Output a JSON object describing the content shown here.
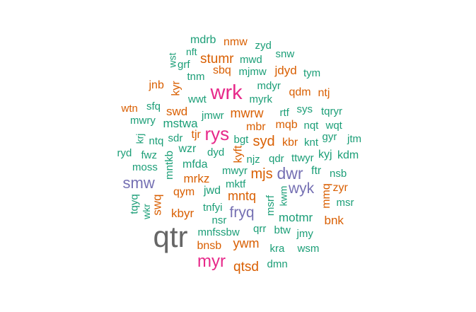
{
  "palette": {
    "teal": "#1b9e77",
    "orange": "#d95f02",
    "purple": "#7570b3",
    "pink": "#e7298a",
    "gray": "#666666"
  },
  "word_cloud": {
    "words": [
      {
        "text": "mdrb",
        "color": "teal"
      },
      {
        "text": "nmw",
        "color": "orange"
      },
      {
        "text": "zyd",
        "color": "teal"
      },
      {
        "text": "nft",
        "color": "teal"
      },
      {
        "text": "snw",
        "color": "teal"
      },
      {
        "text": "wst",
        "color": "teal"
      },
      {
        "text": "grf",
        "color": "teal"
      },
      {
        "text": "stumr",
        "color": "orange"
      },
      {
        "text": "mwd",
        "color": "teal"
      },
      {
        "text": "tnm",
        "color": "teal"
      },
      {
        "text": "sbq",
        "color": "orange"
      },
      {
        "text": "mjmw",
        "color": "teal"
      },
      {
        "text": "jdyd",
        "color": "orange"
      },
      {
        "text": "tym",
        "color": "teal"
      },
      {
        "text": "jnb",
        "color": "orange"
      },
      {
        "text": "kyr",
        "color": "orange"
      },
      {
        "text": "wrk",
        "color": "pink"
      },
      {
        "text": "mdyr",
        "color": "teal"
      },
      {
        "text": "wwt",
        "color": "teal"
      },
      {
        "text": "qdm",
        "color": "orange"
      },
      {
        "text": "ntj",
        "color": "orange"
      },
      {
        "text": "myrk",
        "color": "teal"
      },
      {
        "text": "wtn",
        "color": "orange"
      },
      {
        "text": "sfq",
        "color": "teal"
      },
      {
        "text": "swd",
        "color": "orange"
      },
      {
        "text": "mwrw",
        "color": "orange"
      },
      {
        "text": "rtf",
        "color": "teal"
      },
      {
        "text": "sys",
        "color": "teal"
      },
      {
        "text": "tqryr",
        "color": "teal"
      },
      {
        "text": "mwry",
        "color": "teal"
      },
      {
        "text": "mstwa",
        "color": "teal"
      },
      {
        "text": "jmwr",
        "color": "teal"
      },
      {
        "text": "mqb",
        "color": "orange"
      },
      {
        "text": "nqt",
        "color": "teal"
      },
      {
        "text": "wqt",
        "color": "teal"
      },
      {
        "text": "tjr",
        "color": "orange"
      },
      {
        "text": "rys",
        "color": "pink"
      },
      {
        "text": "mbr",
        "color": "orange"
      },
      {
        "text": "gyr",
        "color": "teal"
      },
      {
        "text": "krj",
        "color": "teal"
      },
      {
        "text": "ntq",
        "color": "teal"
      },
      {
        "text": "sdr",
        "color": "teal"
      },
      {
        "text": "bgt",
        "color": "teal"
      },
      {
        "text": "syd",
        "color": "orange"
      },
      {
        "text": "kbr",
        "color": "orange"
      },
      {
        "text": "knt",
        "color": "teal"
      },
      {
        "text": "jtm",
        "color": "teal"
      },
      {
        "text": "ryd",
        "color": "teal"
      },
      {
        "text": "fwz",
        "color": "teal"
      },
      {
        "text": "mntkb",
        "color": "teal"
      },
      {
        "text": "wzr",
        "color": "teal"
      },
      {
        "text": "dyd",
        "color": "teal"
      },
      {
        "text": "kyft",
        "color": "orange"
      },
      {
        "text": "njz",
        "color": "teal"
      },
      {
        "text": "qdr",
        "color": "teal"
      },
      {
        "text": "ttwyr",
        "color": "teal"
      },
      {
        "text": "kyj",
        "color": "teal"
      },
      {
        "text": "kdm",
        "color": "teal"
      },
      {
        "text": "moss",
        "color": "teal"
      },
      {
        "text": "mfda",
        "color": "teal"
      },
      {
        "text": "mwyr",
        "color": "teal"
      },
      {
        "text": "mjs",
        "color": "orange"
      },
      {
        "text": "dwr",
        "color": "purple"
      },
      {
        "text": "ftr",
        "color": "teal"
      },
      {
        "text": "nsb",
        "color": "teal"
      },
      {
        "text": "smw",
        "color": "purple"
      },
      {
        "text": "mrkz",
        "color": "orange"
      },
      {
        "text": "mktf",
        "color": "teal"
      },
      {
        "text": "wyk",
        "color": "purple"
      },
      {
        "text": "zyr",
        "color": "orange"
      },
      {
        "text": "qym",
        "color": "orange"
      },
      {
        "text": "jwd",
        "color": "teal"
      },
      {
        "text": "mntq",
        "color": "orange"
      },
      {
        "text": "tqyq",
        "color": "teal"
      },
      {
        "text": "swq",
        "color": "orange"
      },
      {
        "text": "msrf",
        "color": "teal"
      },
      {
        "text": "kwm",
        "color": "teal"
      },
      {
        "text": "mmq",
        "color": "orange"
      },
      {
        "text": "msr",
        "color": "teal"
      },
      {
        "text": "wkr",
        "color": "teal"
      },
      {
        "text": "kbyr",
        "color": "orange"
      },
      {
        "text": "tnfyi",
        "color": "teal"
      },
      {
        "text": "fryq",
        "color": "purple"
      },
      {
        "text": "motmr",
        "color": "teal"
      },
      {
        "text": "bnk",
        "color": "orange"
      },
      {
        "text": "nsr",
        "color": "teal"
      },
      {
        "text": "qtr",
        "color": "gray"
      },
      {
        "text": "mnfssbw",
        "color": "teal"
      },
      {
        "text": "qrr",
        "color": "teal"
      },
      {
        "text": "btw",
        "color": "teal"
      },
      {
        "text": "jmy",
        "color": "teal"
      },
      {
        "text": "ywm",
        "color": "orange"
      },
      {
        "text": "bnsb",
        "color": "orange"
      },
      {
        "text": "kra",
        "color": "teal"
      },
      {
        "text": "wsm",
        "color": "teal"
      },
      {
        "text": "myr",
        "color": "pink"
      },
      {
        "text": "qtsd",
        "color": "orange"
      },
      {
        "text": "dmn",
        "color": "teal"
      }
    ]
  }
}
